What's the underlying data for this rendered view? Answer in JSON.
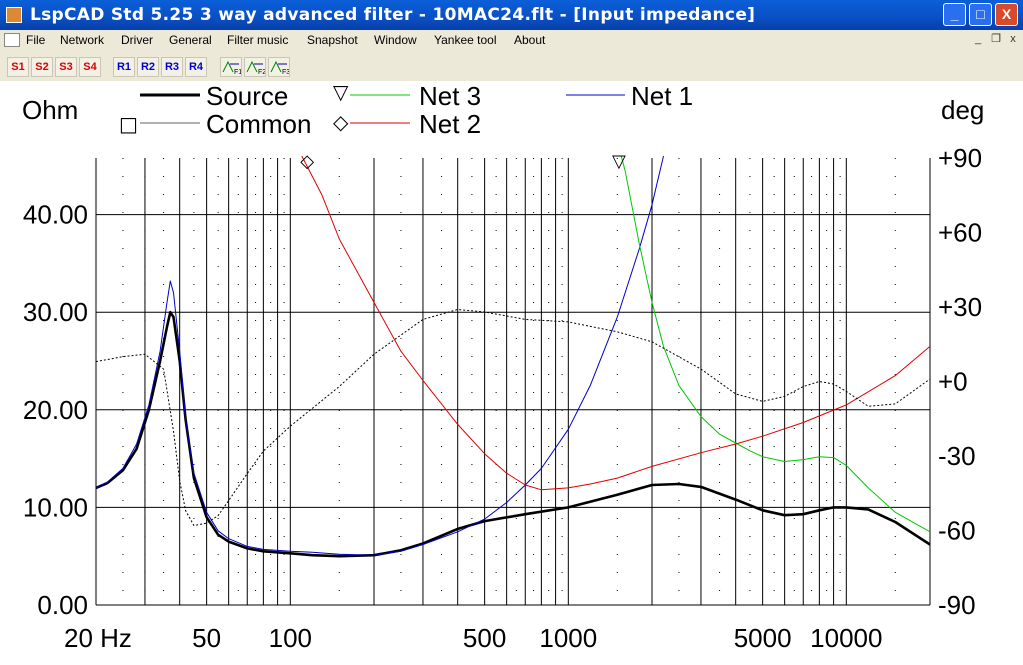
{
  "window": {
    "title": "LspCAD Std 5.25 3 way advanced filter - 10MAC24.flt - [Input impedance]",
    "controls": [
      "_",
      "□",
      "X"
    ]
  },
  "menu": {
    "items": [
      "File",
      "Network",
      "Driver",
      "General",
      "Filter music",
      "Snapshot",
      "Window",
      "Yankee tool",
      "About"
    ],
    "mdi_controls": [
      "_",
      "❐",
      "x"
    ]
  },
  "toolbar": {
    "snapshot_buttons": [
      "S1",
      "S2",
      "S3",
      "S4"
    ],
    "reference_buttons": [
      "R1",
      "R2",
      "R3",
      "R4"
    ],
    "filter_buttons": [
      "F1",
      "F2",
      "F3"
    ]
  },
  "chart_data": {
    "type": "line",
    "left_unit": "Ohm",
    "right_unit": "deg",
    "x_axis": {
      "scale": "log",
      "range": [
        20,
        20000
      ],
      "tick_labels": [
        "20 Hz",
        "50",
        "100",
        "500",
        "1000",
        "5000",
        "10000"
      ]
    },
    "y_left": {
      "range": [
        0,
        45
      ],
      "tick_labels": [
        "0.00",
        "10.00",
        "20.00",
        "30.00",
        "40.00"
      ]
    },
    "y_right": {
      "range": [
        -90,
        90
      ],
      "tick_labels": [
        "-90",
        "-60",
        "-30",
        "+0",
        "+30",
        "+60",
        "+90"
      ]
    },
    "legend": [
      {
        "name": "Source",
        "marker": "",
        "color": "#000000",
        "style": "thick"
      },
      {
        "name": "Common",
        "marker": "□",
        "color": "#606060",
        "style": "thin"
      },
      {
        "name": "Net 3",
        "marker": "▽",
        "color": "#00c800",
        "style": "thin"
      },
      {
        "name": "Net 2",
        "marker": "◇",
        "color": "#e00000",
        "style": "thin"
      },
      {
        "name": "Net 1",
        "marker": "",
        "color": "#0000c8",
        "style": "thin"
      }
    ],
    "series": [
      {
        "name": "Source",
        "axis": "left",
        "color": "#000000",
        "x": [
          20,
          22,
          25,
          28,
          31,
          34,
          36,
          37,
          38,
          40,
          42,
          45,
          50,
          55,
          60,
          70,
          80,
          100,
          120,
          150,
          200,
          250,
          300,
          400,
          500,
          700,
          1000,
          1500,
          2000,
          2500,
          3000,
          4000,
          5000,
          6000,
          7000,
          8000,
          9000,
          10000,
          12000,
          15000,
          20000
        ],
        "y": [
          12,
          12.5,
          13.8,
          16,
          20,
          25,
          28.5,
          30,
          29.5,
          25,
          19,
          13,
          9,
          7.2,
          6.5,
          5.8,
          5.5,
          5.3,
          5.1,
          5,
          5.1,
          5.6,
          6.3,
          7.8,
          8.6,
          9.3,
          10,
          11.3,
          12.3,
          12.4,
          12.1,
          10.8,
          9.7,
          9.2,
          9.3,
          9.7,
          10,
          10,
          9.8,
          8.5,
          6.2
        ]
      },
      {
        "name": "Net 1",
        "axis": "left",
        "color": "#0000c8",
        "x": [
          20,
          22,
          25,
          28,
          31,
          34,
          36,
          37,
          38,
          40,
          42,
          45,
          50,
          55,
          60,
          70,
          80,
          100,
          120,
          150,
          200,
          250,
          300,
          400,
          500,
          600,
          700,
          800,
          1000,
          1200,
          1500,
          1800,
          2000,
          2200
        ],
        "y": [
          12,
          12.6,
          14,
          16.5,
          20.5,
          26,
          31,
          33.2,
          32,
          26,
          19,
          13.5,
          9.5,
          7.6,
          6.8,
          6,
          5.7,
          5.5,
          5.4,
          5.2,
          5.1,
          5.5,
          6.2,
          7.5,
          8.8,
          10.5,
          12.3,
          14,
          18,
          22.5,
          29.5,
          36.5,
          41,
          46
        ]
      },
      {
        "name": "Net 3",
        "axis": "left",
        "color": "#00c800",
        "x": [
          1550,
          1600,
          1800,
          2000,
          2200,
          2500,
          3000,
          3500,
          4000,
          4500,
          5000,
          6000,
          7000,
          8000,
          9000,
          10000,
          12000,
          15000,
          20000
        ],
        "y": [
          46,
          44.5,
          37,
          31,
          26.5,
          22.5,
          19.3,
          17.5,
          16.6,
          15.8,
          15.2,
          14.7,
          14.9,
          15.2,
          15.1,
          14.3,
          12,
          9.5,
          7.5
        ]
      },
      {
        "name": "Net 2",
        "axis": "left",
        "color": "#e00000",
        "x": [
          110,
          130,
          150,
          200,
          250,
          300,
          400,
          500,
          600,
          700,
          800,
          1000,
          1200,
          1500,
          2000,
          3000,
          4000,
          5000,
          7000,
          10000,
          15000,
          20000
        ],
        "y": [
          46,
          42,
          37.5,
          31,
          26,
          23,
          18.5,
          15.5,
          13.5,
          12.3,
          11.8,
          12,
          12.4,
          13,
          14.2,
          15.6,
          16.5,
          17.3,
          18.7,
          20.5,
          23.5,
          26.5
        ]
      },
      {
        "name": "Common",
        "axis": "right",
        "color": "#000000",
        "dashed": true,
        "x": [
          20,
          25,
          30,
          35,
          38,
          40,
          42,
          45,
          50,
          55,
          60,
          70,
          80,
          100,
          150,
          200,
          300,
          400,
          500,
          700,
          1000,
          1500,
          2000,
          3000,
          4000,
          5000,
          6000,
          7000,
          8000,
          9000,
          10000,
          12000,
          15000,
          20000
        ],
        "y": [
          8,
          10,
          11,
          5,
          -20,
          -40,
          -52,
          -58,
          -57,
          -54,
          -48,
          -37,
          -28,
          -18,
          -2,
          11,
          25,
          29,
          28,
          25,
          24,
          20,
          16,
          5,
          -5,
          -8,
          -6,
          -2,
          0,
          -1,
          -4,
          -10,
          -9,
          1
        ]
      }
    ],
    "markers": [
      {
        "series": "Net 2",
        "symbol": "◇",
        "x": 115
      },
      {
        "series": "Net 3",
        "symbol": "▽",
        "x": 1520
      }
    ]
  }
}
